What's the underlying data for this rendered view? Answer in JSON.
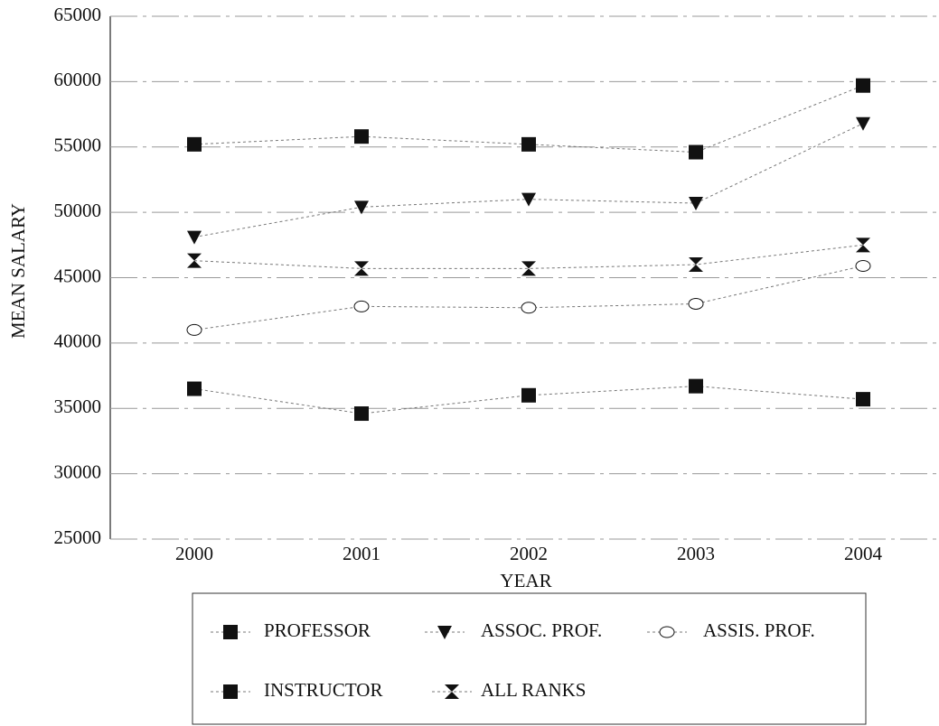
{
  "chart_data": {
    "type": "line",
    "x_label": "YEAR",
    "y_label": "MEAN SALARY",
    "categories": [
      "2000",
      "2001",
      "2002",
      "2003",
      "2004"
    ],
    "ylim": [
      25000,
      65000
    ],
    "yticks": [
      25000,
      30000,
      35000,
      40000,
      45000,
      50000,
      55000,
      60000,
      65000
    ],
    "grid": true,
    "series": [
      {
        "name": "PROFESSOR",
        "color": "#111111",
        "marker": "square",
        "values": [
          55200,
          55800,
          55200,
          54600,
          59700
        ]
      },
      {
        "name": "ASSOC. PROF.",
        "color": "#111111",
        "marker": "triangle-down",
        "values": [
          48100,
          50400,
          51000,
          50700,
          56800
        ]
      },
      {
        "name": "ASSIS. PROF.",
        "color": "#111111",
        "marker": "open-circle",
        "values": [
          41000,
          42800,
          42700,
          43000,
          45900
        ]
      },
      {
        "name": "INSTRUCTOR",
        "color": "#111111",
        "marker": "square",
        "values": [
          36500,
          34600,
          36000,
          36700,
          35700
        ]
      },
      {
        "name": "ALL RANKS",
        "color": "#111111",
        "marker": "hourglass",
        "values": [
          46300,
          45700,
          45700,
          46000,
          47500
        ]
      }
    ]
  }
}
